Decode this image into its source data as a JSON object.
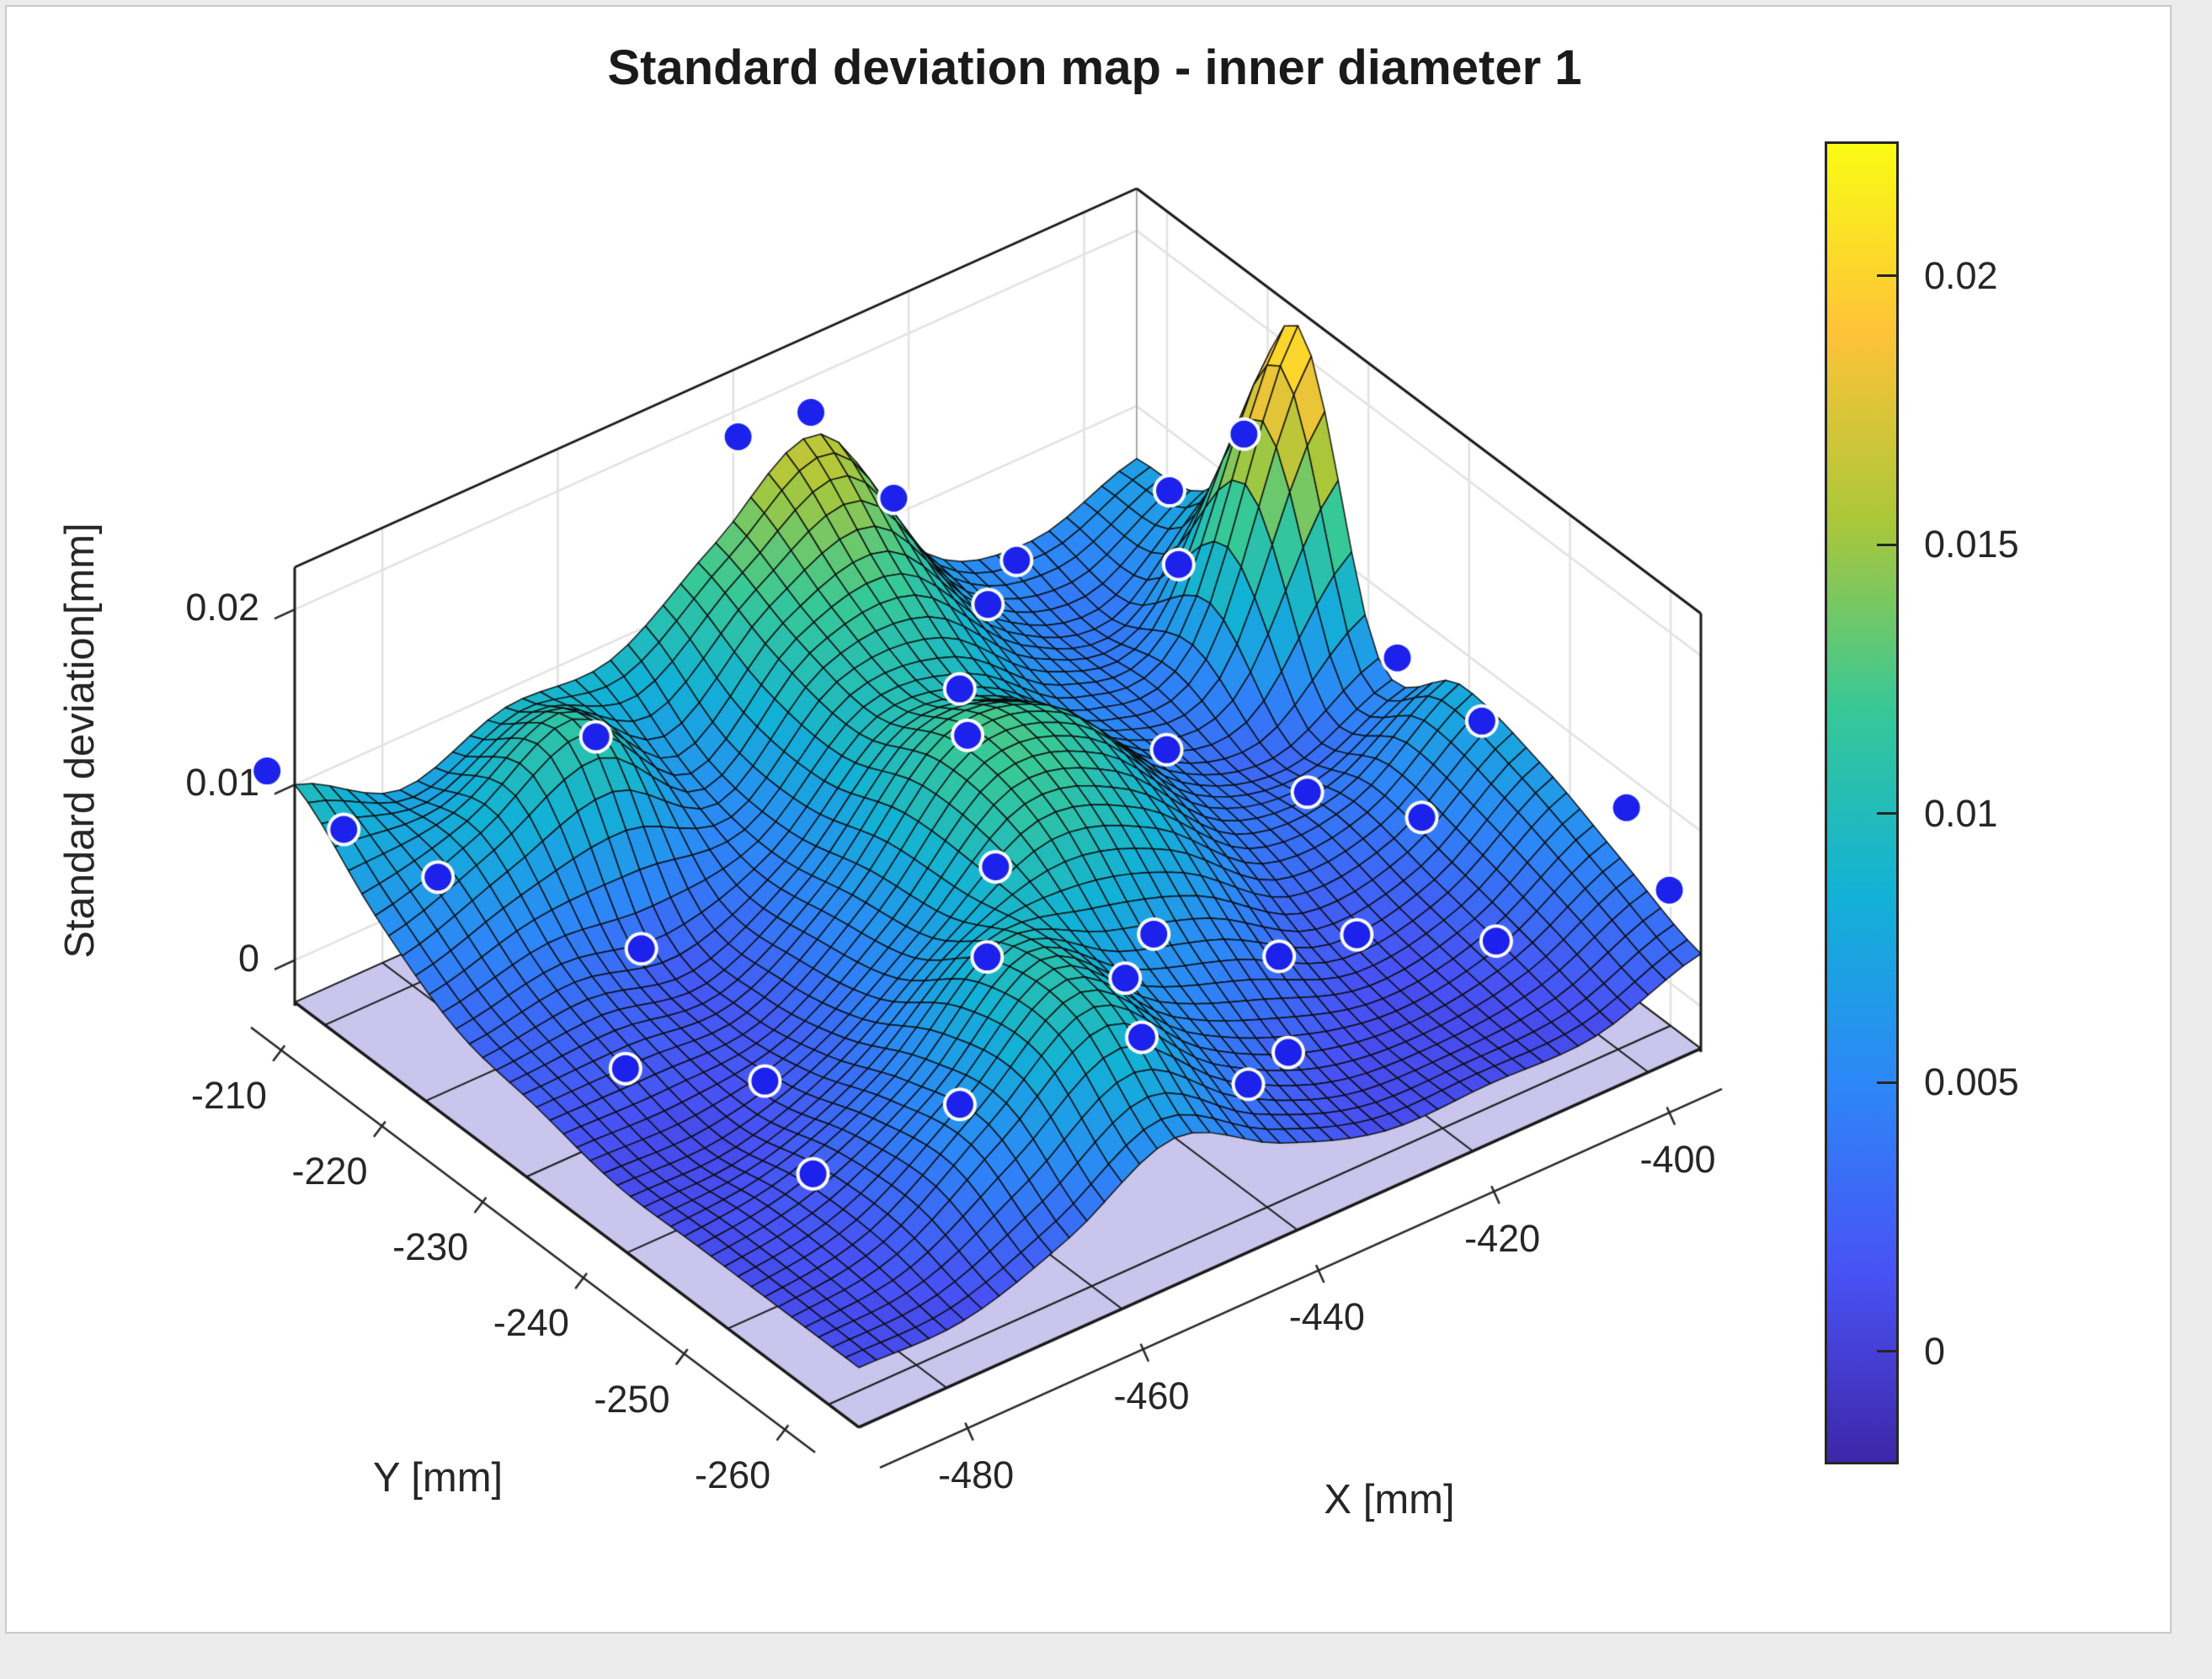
{
  "chart_data": {
    "type": "surface",
    "title": "Standard deviation map - inner diameter 1",
    "xlabel": "X [mm]",
    "ylabel": "Y [mm]",
    "zlabel": "Standard deviation[mm]",
    "xlim": [
      -490,
      -394
    ],
    "ylim": [
      -263,
      -207
    ],
    "zlim": [
      -0.0026,
      0.0224
    ],
    "x_ticks": [
      -480,
      -460,
      -440,
      -420,
      -400
    ],
    "y_ticks": [
      -210,
      -220,
      -230,
      -240,
      -250,
      -260
    ],
    "z_ticks": [
      0,
      0.01,
      0.02
    ],
    "clim": [
      -0.0021,
      0.0225
    ],
    "grid_on": true,
    "view": "3d, azimuth about -40 deg, elevation about 28 deg",
    "colormap_name": "parula",
    "colormap_stops": [
      "#3e26a8",
      "#4852f4",
      "#2d87f7",
      "#12b1d6",
      "#37c897",
      "#abc739",
      "#fec338",
      "#f9fb15"
    ],
    "colorbar": {
      "ticks": [
        0,
        0.005,
        0.01,
        0.015,
        0.02
      ],
      "position": "right"
    },
    "grid": {
      "x": [
        -490,
        -478,
        -466,
        -454,
        -442,
        -430,
        -418,
        -406,
        -394
      ],
      "y": [
        -263,
        -255,
        -247,
        -239,
        -231,
        -223,
        -215,
        -207
      ],
      "z": [
        [
          0.001,
          0.001,
          0.003,
          0.006,
          0.003,
          0.001,
          0.001,
          0.001,
          0.003
        ],
        [
          0.001,
          0.002,
          0.006,
          0.01,
          0.005,
          0.002,
          0.001,
          0.002,
          0.005
        ],
        [
          0.001,
          0.002,
          0.005,
          0.01,
          0.007,
          0.005,
          0.002,
          0.003,
          0.007
        ],
        [
          0.001,
          0.001,
          0.003,
          0.007,
          0.011,
          0.009,
          0.004,
          0.004,
          0.008
        ],
        [
          0.002,
          0.002,
          0.002,
          0.006,
          0.012,
          0.011,
          0.005,
          0.003,
          0.006
        ],
        [
          0.003,
          0.004,
          0.003,
          0.005,
          0.01,
          0.009,
          0.005,
          0.006,
          0.0215
        ],
        [
          0.006,
          0.008,
          0.011,
          0.006,
          0.011,
          0.012,
          0.006,
          0.004,
          0.009
        ],
        [
          0.01,
          0.007,
          0.009,
          0.009,
          0.013,
          0.0165,
          0.007,
          0.005,
          0.007
        ]
      ]
    },
    "scatter_points": [
      [
        -492,
        -206
      ],
      [
        -489,
        -211
      ],
      [
        -484,
        -216
      ],
      [
        -466,
        -216
      ],
      [
        -470,
        -224
      ],
      [
        -481,
        -232
      ],
      [
        -472,
        -238
      ],
      [
        -478,
        -248
      ],
      [
        -467,
        -253
      ],
      [
        -457,
        -247
      ],
      [
        -452,
        -258
      ],
      [
        -447,
        -252
      ],
      [
        -436,
        -204
      ],
      [
        -430,
        -206
      ],
      [
        -424,
        -209
      ],
      [
        -441,
        -259
      ],
      [
        -433,
        -256
      ],
      [
        -426,
        -249
      ],
      [
        -438,
        -247
      ],
      [
        -448,
        -240
      ],
      [
        -442,
        -232
      ],
      [
        -436,
        -226
      ],
      [
        -419,
        -214
      ],
      [
        -410,
        -209
      ],
      [
        -417,
        -230
      ],
      [
        -409,
        -237
      ],
      [
        -404,
        -244
      ],
      [
        -416,
        -248
      ],
      [
        -407,
        -254
      ],
      [
        -399,
        -222
      ],
      [
        -403,
        -219
      ],
      [
        -396,
        -212
      ],
      [
        -393,
        -232
      ],
      [
        -396,
        -243
      ],
      [
        -391,
        -253
      ],
      [
        -393,
        -259
      ]
    ],
    "colors": {
      "marker": "#1c22ec",
      "marker_halo": "#ffffff",
      "floor_plane": "#c9c5ec",
      "floor_grid": "#1a1a1a",
      "mesh_line": "#0a0a0a",
      "wall": "#ffffff",
      "wall_grid": "#e2e2e2",
      "box_edge": "#1a1a1a",
      "back_edge": "#aaaaaa",
      "ruler": "#262626",
      "text": "#262626",
      "background": "#ffffff",
      "frame": "#c9c9c9"
    }
  }
}
